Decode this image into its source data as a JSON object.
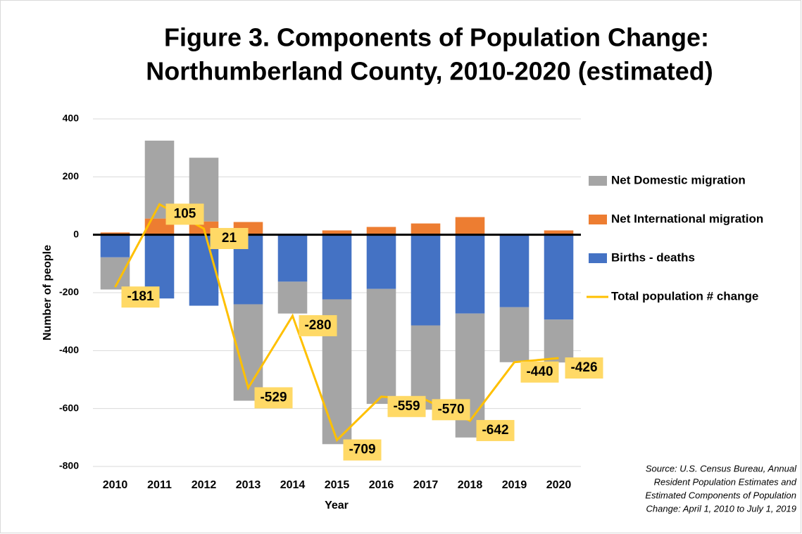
{
  "chart_data": {
    "type": "stacked_bar_line",
    "title": [
      "Figure 3. Components of Population Change:",
      "Northumberland County, 2010-2020 (estimated)"
    ],
    "x_label": "Year",
    "y_label": "Number of people",
    "categories": [
      "2010",
      "2011",
      "2012",
      "2013",
      "2014",
      "2015",
      "2016",
      "2017",
      "2018",
      "2019",
      "2020"
    ],
    "series": [
      {
        "name": "Net Domestic migration",
        "color": "#a5a5a5",
        "kind": "bar",
        "values": [
          -111,
          269,
          220,
          -333,
          -110,
          -500,
          -397,
          -291,
          -428,
          -190,
          -148
        ]
      },
      {
        "name": "Net International migration",
        "color": "#ed7d31",
        "kind": "bar",
        "values": [
          8,
          56,
          46,
          44,
          0,
          15,
          27,
          39,
          61,
          0,
          15
        ]
      },
      {
        "name": "Births - deaths",
        "color": "#4472c4",
        "kind": "bar",
        "values": [
          -78,
          -220,
          -245,
          -240,
          -162,
          -223,
          -187,
          -313,
          -272,
          -250,
          -293
        ]
      },
      {
        "name": "Total population # change",
        "color": "#ffc000",
        "kind": "line",
        "values": [
          -181,
          105,
          21,
          -529,
          -280,
          -709,
          -559,
          -570,
          -642,
          -440,
          -426
        ]
      }
    ],
    "ylim": [
      -800,
      400
    ],
    "yticks": [
      -800,
      -600,
      -400,
      -200,
      0,
      200,
      400
    ],
    "grid": true,
    "legend": "right",
    "source": [
      "Source: U.S. Census Bureau, Annual",
      "Resident Population Estimates and",
      "Estimated Components of Population",
      "Change: April 1, 2010 to July 1, 2019"
    ]
  }
}
